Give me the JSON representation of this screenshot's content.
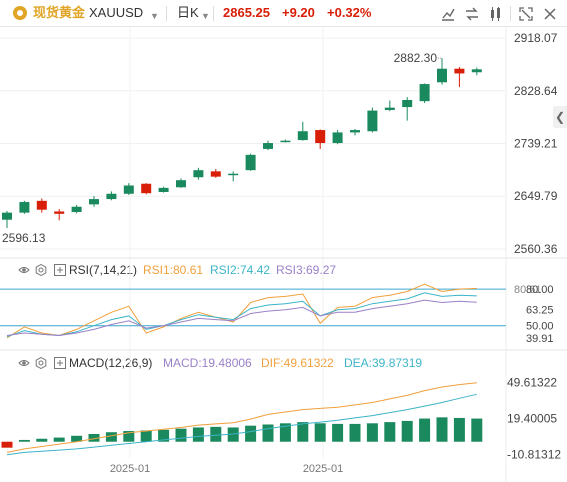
{
  "header": {
    "symbol_name": "现货黄金",
    "symbol_code": "XAUUSD",
    "timeframe": "日K",
    "last_price": "2865.25",
    "change": "+9.20",
    "change_pct": "+0.32%",
    "up_color": "#d81e06",
    "accent_color": "#e0a526"
  },
  "toolbar": {
    "icons": [
      "draw-tool-icon",
      "compare-icon",
      "indicators-icon",
      "fullscreen-icon",
      "close-icon"
    ]
  },
  "side": {
    "collapse_icon": "chevron-left-icon"
  },
  "chart_data": [
    {
      "type": "candlestick",
      "title": "",
      "ylim": [
        2560.36,
        2918.07
      ],
      "y_ticks": [
        "2918.07",
        "2828.64",
        "2739.21",
        "2649.79",
        "2560.36"
      ],
      "annotations": {
        "high_label": "2882.30",
        "low_label": "2596.13"
      },
      "up_color": "#d81e06",
      "down_color": "#1a8a5e",
      "candles": [
        {
          "o": 2610,
          "h": 2625,
          "l": 2596,
          "c": 2622
        },
        {
          "o": 2622,
          "h": 2642,
          "l": 2620,
          "c": 2640
        },
        {
          "o": 2642,
          "h": 2646,
          "l": 2622,
          "c": 2627
        },
        {
          "o": 2624,
          "h": 2628,
          "l": 2609,
          "c": 2620
        },
        {
          "o": 2623,
          "h": 2635,
          "l": 2621,
          "c": 2632
        },
        {
          "o": 2636,
          "h": 2650,
          "l": 2632,
          "c": 2645
        },
        {
          "o": 2645,
          "h": 2658,
          "l": 2643,
          "c": 2654
        },
        {
          "o": 2654,
          "h": 2672,
          "l": 2652,
          "c": 2668
        },
        {
          "o": 2671,
          "h": 2672,
          "l": 2653,
          "c": 2655
        },
        {
          "o": 2657,
          "h": 2666,
          "l": 2656,
          "c": 2664
        },
        {
          "o": 2665,
          "h": 2680,
          "l": 2664,
          "c": 2677
        },
        {
          "o": 2682,
          "h": 2698,
          "l": 2678,
          "c": 2694
        },
        {
          "o": 2692,
          "h": 2696,
          "l": 2681,
          "c": 2683
        },
        {
          "o": 2688,
          "h": 2692,
          "l": 2675,
          "c": 2688
        },
        {
          "o": 2694,
          "h": 2722,
          "l": 2693,
          "c": 2720
        },
        {
          "o": 2730,
          "h": 2744,
          "l": 2728,
          "c": 2740
        },
        {
          "o": 2744,
          "h": 2746,
          "l": 2741,
          "c": 2744
        },
        {
          "o": 2745,
          "h": 2776,
          "l": 2744,
          "c": 2760
        },
        {
          "o": 2762,
          "h": 2763,
          "l": 2730,
          "c": 2740
        },
        {
          "o": 2740,
          "h": 2762,
          "l": 2738,
          "c": 2758
        },
        {
          "o": 2758,
          "h": 2764,
          "l": 2753,
          "c": 2762
        },
        {
          "o": 2760,
          "h": 2800,
          "l": 2758,
          "c": 2795
        },
        {
          "o": 2796,
          "h": 2812,
          "l": 2794,
          "c": 2800
        },
        {
          "o": 2801,
          "h": 2818,
          "l": 2778,
          "c": 2813
        },
        {
          "o": 2811,
          "h": 2841,
          "l": 2808,
          "c": 2840
        },
        {
          "o": 2843,
          "h": 2884,
          "l": 2839,
          "c": 2866
        },
        {
          "o": 2866,
          "h": 2869,
          "l": 2835,
          "c": 2858
        },
        {
          "o": 2860,
          "h": 2868,
          "l": 2855,
          "c": 2865
        }
      ]
    },
    {
      "type": "line",
      "title": "RSI(7,14,21)",
      "ylim": [
        35,
        85
      ],
      "y_ticks": [
        "80.00",
        "63.25",
        "50.00",
        "39.91"
      ],
      "overlap_tick": "80.61",
      "ref_lines": [
        80,
        50
      ],
      "series": [
        {
          "name": "RSI1:80.61",
          "color": "#f0a03c",
          "values": [
            40,
            49,
            44,
            42,
            47,
            54,
            61,
            66,
            44,
            49,
            56,
            61,
            57,
            53,
            69,
            73,
            74,
            76,
            52,
            65,
            66,
            73,
            75,
            78,
            84,
            78,
            80,
            80.61
          ]
        },
        {
          "name": "RSI2:74.42",
          "color": "#3cb4c8",
          "values": [
            41,
            46,
            43,
            42,
            45,
            50,
            55,
            58,
            47,
            50,
            55,
            59,
            57,
            55,
            64,
            67,
            68,
            70,
            58,
            63,
            64,
            68,
            70,
            72,
            77,
            74,
            75,
            74.42
          ]
        },
        {
          "name": "RSI3:69.27",
          "color": "#9a80c8",
          "values": [
            42,
            44,
            43,
            42,
            44,
            47,
            51,
            54,
            48,
            50,
            53,
            56,
            55,
            54,
            60,
            62,
            63,
            65,
            58,
            61,
            61,
            64,
            66,
            68,
            71,
            69,
            70,
            69.27
          ]
        }
      ]
    },
    {
      "type": "bar-line",
      "title": "MACD(12,26,9)",
      "ylim": [
        -12,
        62
      ],
      "y_ticks": [
        "49.61322",
        "19.40005",
        "-10.81312"
      ],
      "series": [
        {
          "name": "MACD:19.48006",
          "color": "#1a8a5e",
          "values": [
            -5,
            1.5,
            2.5,
            3.5,
            5,
            6.5,
            8,
            9,
            9.5,
            10,
            11,
            12,
            12.5,
            12,
            13.5,
            14.5,
            15.5,
            16.5,
            15.5,
            15,
            15,
            15.5,
            16.5,
            17.5,
            19.5,
            20.5,
            20,
            19.48006
          ]
        },
        {
          "name": "DIF:49.61322",
          "color": "#f0a03c",
          "values": [
            -9,
            -6,
            -4,
            -2,
            0,
            2.5,
            5,
            7.5,
            9,
            10.5,
            12,
            14,
            15,
            16,
            19,
            23,
            25,
            27,
            28,
            29,
            31,
            33,
            36,
            39,
            43,
            46,
            48,
            49.61322
          ]
        },
        {
          "name": "DEA:39.87319",
          "color": "#3cb4c8",
          "values": [
            -11,
            -9,
            -8,
            -7,
            -6,
            -4.5,
            -3,
            -1.5,
            0,
            1.5,
            3,
            4.5,
            5.5,
            6.5,
            8.5,
            11,
            13,
            15,
            16.5,
            18,
            20,
            22,
            24.5,
            27,
            30,
            33,
            36.5,
            39.87319
          ]
        }
      ]
    }
  ],
  "x_axis": {
    "labels": [
      "2025-01",
      "2025-01"
    ]
  },
  "legend_icons": [
    "eye-icon",
    "settings-icon",
    "expand-icon"
  ]
}
